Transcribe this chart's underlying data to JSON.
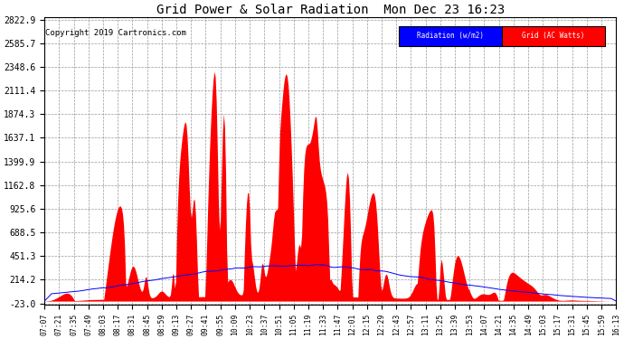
{
  "title": "Grid Power & Solar Radiation  Mon Dec 23 16:23",
  "copyright": "Copyright 2019 Cartronics.com",
  "background_color": "#ffffff",
  "plot_bg_color": "#ffffff",
  "grid_color": "#999999",
  "yticks": [
    -23.0,
    214.2,
    451.3,
    688.5,
    925.6,
    1162.8,
    1399.9,
    1637.1,
    1874.3,
    2111.4,
    2348.6,
    2585.7,
    2822.9
  ],
  "ymin": -23.0,
  "ymax": 2822.9,
  "red_fill_color": "#ff0000",
  "blue_line_color": "#0000ff",
  "legend_radiation_bg": "#0000ff",
  "legend_grid_bg": "#ff0000",
  "legend_radiation_label": "Radiation (w/m2)",
  "legend_grid_label": "Grid (AC Watts)",
  "xtick_labels": [
    "07:07",
    "07:21",
    "07:35",
    "07:49",
    "08:03",
    "08:17",
    "08:31",
    "08:45",
    "08:59",
    "09:13",
    "09:27",
    "09:41",
    "09:55",
    "10:09",
    "10:23",
    "10:37",
    "10:51",
    "11:05",
    "11:19",
    "11:33",
    "11:47",
    "12:01",
    "12:15",
    "12:29",
    "12:43",
    "12:57",
    "13:11",
    "13:25",
    "13:39",
    "13:53",
    "14:07",
    "14:21",
    "14:35",
    "14:49",
    "15:03",
    "15:17",
    "15:31",
    "15:45",
    "15:59",
    "16:13"
  ]
}
